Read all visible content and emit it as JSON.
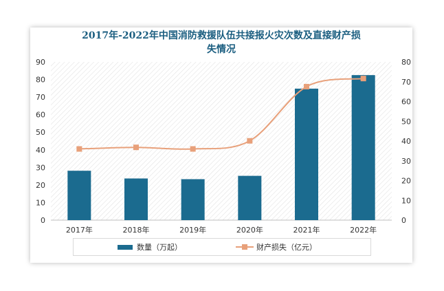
{
  "chart_data": {
    "type": "bar",
    "title_line1": "2017年-2022年中国消防救援队伍共接报火灾次数及直接财产损",
    "title_line2": "失情况",
    "categories": [
      "2017年",
      "2018年",
      "2019年",
      "2020年",
      "2021年",
      "2022年"
    ],
    "series": [
      {
        "name": "数量（万起）",
        "type": "bar",
        "axis": "left",
        "values": [
          28.1,
          23.7,
          23.3,
          25.2,
          74.8,
          82.5
        ]
      },
      {
        "name": "财产损失（亿元）",
        "type": "line",
        "axis": "right",
        "values": [
          36.0,
          36.8,
          36.0,
          40.1,
          67.5,
          71.6
        ]
      }
    ],
    "y_left": {
      "min": 0,
      "max": 90,
      "ticks": [
        0,
        10,
        20,
        30,
        40,
        50,
        60,
        70,
        80,
        90
      ]
    },
    "y_right": {
      "min": 0,
      "max": 80,
      "ticks": [
        0,
        10,
        20,
        30,
        40,
        50,
        60,
        70,
        80
      ]
    },
    "grid": false,
    "background_pattern": "diagonal-hatch",
    "legend_position": "bottom",
    "colors": {
      "bar": "#1b6b8f",
      "line": "#e8a07a",
      "title": "#1b5e80"
    }
  }
}
